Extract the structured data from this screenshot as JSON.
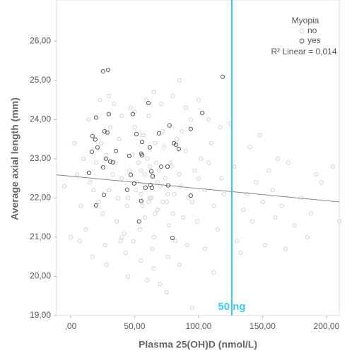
{
  "chart_data": {
    "type": "scatter",
    "x_label": "Plasma 25(OH)D (nmol/L)",
    "y_label": "Average axial length (mm)",
    "legend_title": "Myopia",
    "legend_position": "upper right",
    "xlim": [
      -11,
      210
    ],
    "ylim": [
      19,
      27.05
    ],
    "xticks": [
      {
        "value": 0,
        "label": ",00"
      },
      {
        "value": 50,
        "label": "50,00"
      },
      {
        "value": 100,
        "label": "100,00"
      },
      {
        "value": 150,
        "label": "150,00"
      },
      {
        "value": 200,
        "label": "200,00"
      }
    ],
    "yticks": [
      {
        "value": 19,
        "label": "19,00"
      },
      {
        "value": 20,
        "label": "20,00"
      },
      {
        "value": 21,
        "label": "21,00"
      },
      {
        "value": 22,
        "label": "22,00"
      },
      {
        "value": 23,
        "label": "23,00"
      },
      {
        "value": 24,
        "label": "24,00"
      },
      {
        "value": 25,
        "label": "25,00"
      },
      {
        "value": 26,
        "label": "26,00"
      }
    ],
    "series": [
      {
        "name": "no",
        "color": "#d4d4d4",
        "x": [
          40,
          55,
          62,
          70,
          48,
          75,
          85,
          58,
          66,
          92,
          35,
          44,
          52,
          60,
          68,
          78,
          88,
          97,
          105,
          112,
          30,
          38,
          46,
          54,
          63,
          72,
          81,
          90,
          99,
          108,
          25,
          33,
          42,
          50,
          58,
          65,
          74,
          83,
          95,
          118,
          20,
          28,
          36,
          45,
          53,
          61,
          69,
          77,
          86,
          102,
          15,
          22,
          31,
          39,
          47,
          56,
          64,
          73,
          82,
          94,
          10,
          18,
          27,
          34,
          43,
          51,
          59,
          67,
          76,
          87,
          12,
          24,
          37,
          49,
          57,
          65,
          71,
          80,
          91,
          100,
          110,
          115,
          120,
          128,
          135,
          140,
          145,
          150,
          155,
          160,
          130,
          138,
          148,
          158,
          165,
          170,
          175,
          180,
          188,
          196,
          125,
          133,
          142,
          152,
          162,
          185,
          192,
          205,
          210,
          168,
          75,
          60,
          85,
          95,
          55,
          45,
          105,
          40,
          112,
          70,
          80,
          65,
          90,
          100,
          50,
          40,
          108,
          30,
          117,
          85,
          5,
          8,
          0,
          -5,
          3,
          7,
          14,
          17,
          23,
          28,
          62,
          68,
          72,
          58,
          64,
          76,
          55,
          66,
          79,
          61
        ],
        "values": [
          22.5,
          22.1,
          22.8,
          22.3,
          23.1,
          21.9,
          22.6,
          21.5,
          23.4,
          22.0,
          22.9,
          21.8,
          22.4,
          23.0,
          21.7,
          22.9,
          21.5,
          22.7,
          22.2,
          21.8,
          22.2,
          23.5,
          22.7,
          21.2,
          22.0,
          23.7,
          22.1,
          23.2,
          21.4,
          22.9,
          21.6,
          22.6,
          21.1,
          23.8,
          22.6,
          21.0,
          22.5,
          23.5,
          21.9,
          22.5,
          22.9,
          23.1,
          21.4,
          22.0,
          22.9,
          24.1,
          22.7,
          21.3,
          22.3,
          23.0,
          22.4,
          21.9,
          23.8,
          20.9,
          24.3,
          21.8,
          20.7,
          23.3,
          20.9,
          24.0,
          23.0,
          22.2,
          20.8,
          24.4,
          20.6,
          22.2,
          24.5,
          22.9,
          20.5,
          23.7,
          21.2,
          23.4,
          22.0,
          20.9,
          23.6,
          20.2,
          24.4,
          21.6,
          20.8,
          22.5,
          23.4,
          21.2,
          22.1,
          22.8,
          21.7,
          23.3,
          22.4,
          21.9,
          22.7,
          21.5,
          20.9,
          22.1,
          23.6,
          22.2,
          21.8,
          22.9,
          21.3,
          22.0,
          21.6,
          22.4,
          23.9,
          20.6,
          21.4,
          20.8,
          23.0,
          21.0,
          22.6,
          22.8,
          21.4,
          20.7,
          19.6,
          19.9,
          20.3,
          19.2,
          20.4,
          20.0,
          20.7,
          21.0,
          20.1,
          19.8,
          24.6,
          24.7,
          24.3,
          24.5,
          24.2,
          24.1,
          24.0,
          24.6,
          23.8,
          25.0,
          22.6,
          21.8,
          21.0,
          22.3,
          23.4,
          20.9,
          24.0,
          20.5,
          24.5,
          20.3,
          22.0,
          22.4,
          21.9,
          22.3,
          22.6,
          22.1,
          22.7,
          21.6,
          22.8,
          21.9
        ]
      },
      {
        "name": "yes",
        "color": "#555555",
        "x": [
          25.4,
          29.3,
          118.8,
          60.8,
          48.6,
          29.8,
          19.9,
          102.8,
          77.3,
          93.9,
          26.5,
          28.7,
          17.1,
          19.3,
          51.4,
          69.1,
          55.8,
          80.7,
          82.3,
          84.5,
          16.6,
          35.4,
          21.0,
          61.9,
          55.2,
          55.8,
          45.9,
          27.6,
          30.9,
          33.1,
          70.7,
          75.7,
          14.4,
          25.4,
          63.0,
          47.0,
          64.1,
          49.7,
          62.4,
          63.5,
          58.6,
          44.2,
          76.2,
          93.9,
          26.0,
          19.9,
          55.2,
          53.6,
          79.6
        ],
        "values": [
          25.23,
          25.27,
          25.09,
          24.42,
          24.14,
          24.14,
          24.05,
          24.17,
          23.85,
          23.76,
          23.7,
          23.67,
          23.58,
          23.49,
          23.63,
          23.65,
          23.43,
          23.4,
          23.36,
          23.25,
          23.18,
          23.2,
          23.29,
          23.29,
          23.13,
          23.09,
          23.07,
          23.0,
          22.93,
          22.91,
          22.8,
          22.8,
          22.64,
          22.78,
          22.68,
          22.59,
          22.55,
          22.37,
          22.33,
          22.26,
          22.26,
          22.21,
          22.32,
          22.06,
          22.08,
          21.81,
          21.92,
          21.4,
          20.98
        ]
      }
    ],
    "fit_line": {
      "x": [
        -11,
        210
      ],
      "y": [
        22.59,
        21.9
      ],
      "color": "#888888",
      "label": "R² Linear = 0,014"
    },
    "ref_line": {
      "x": 126,
      "color": "#3ec8f0",
      "label": "50 ng"
    }
  }
}
